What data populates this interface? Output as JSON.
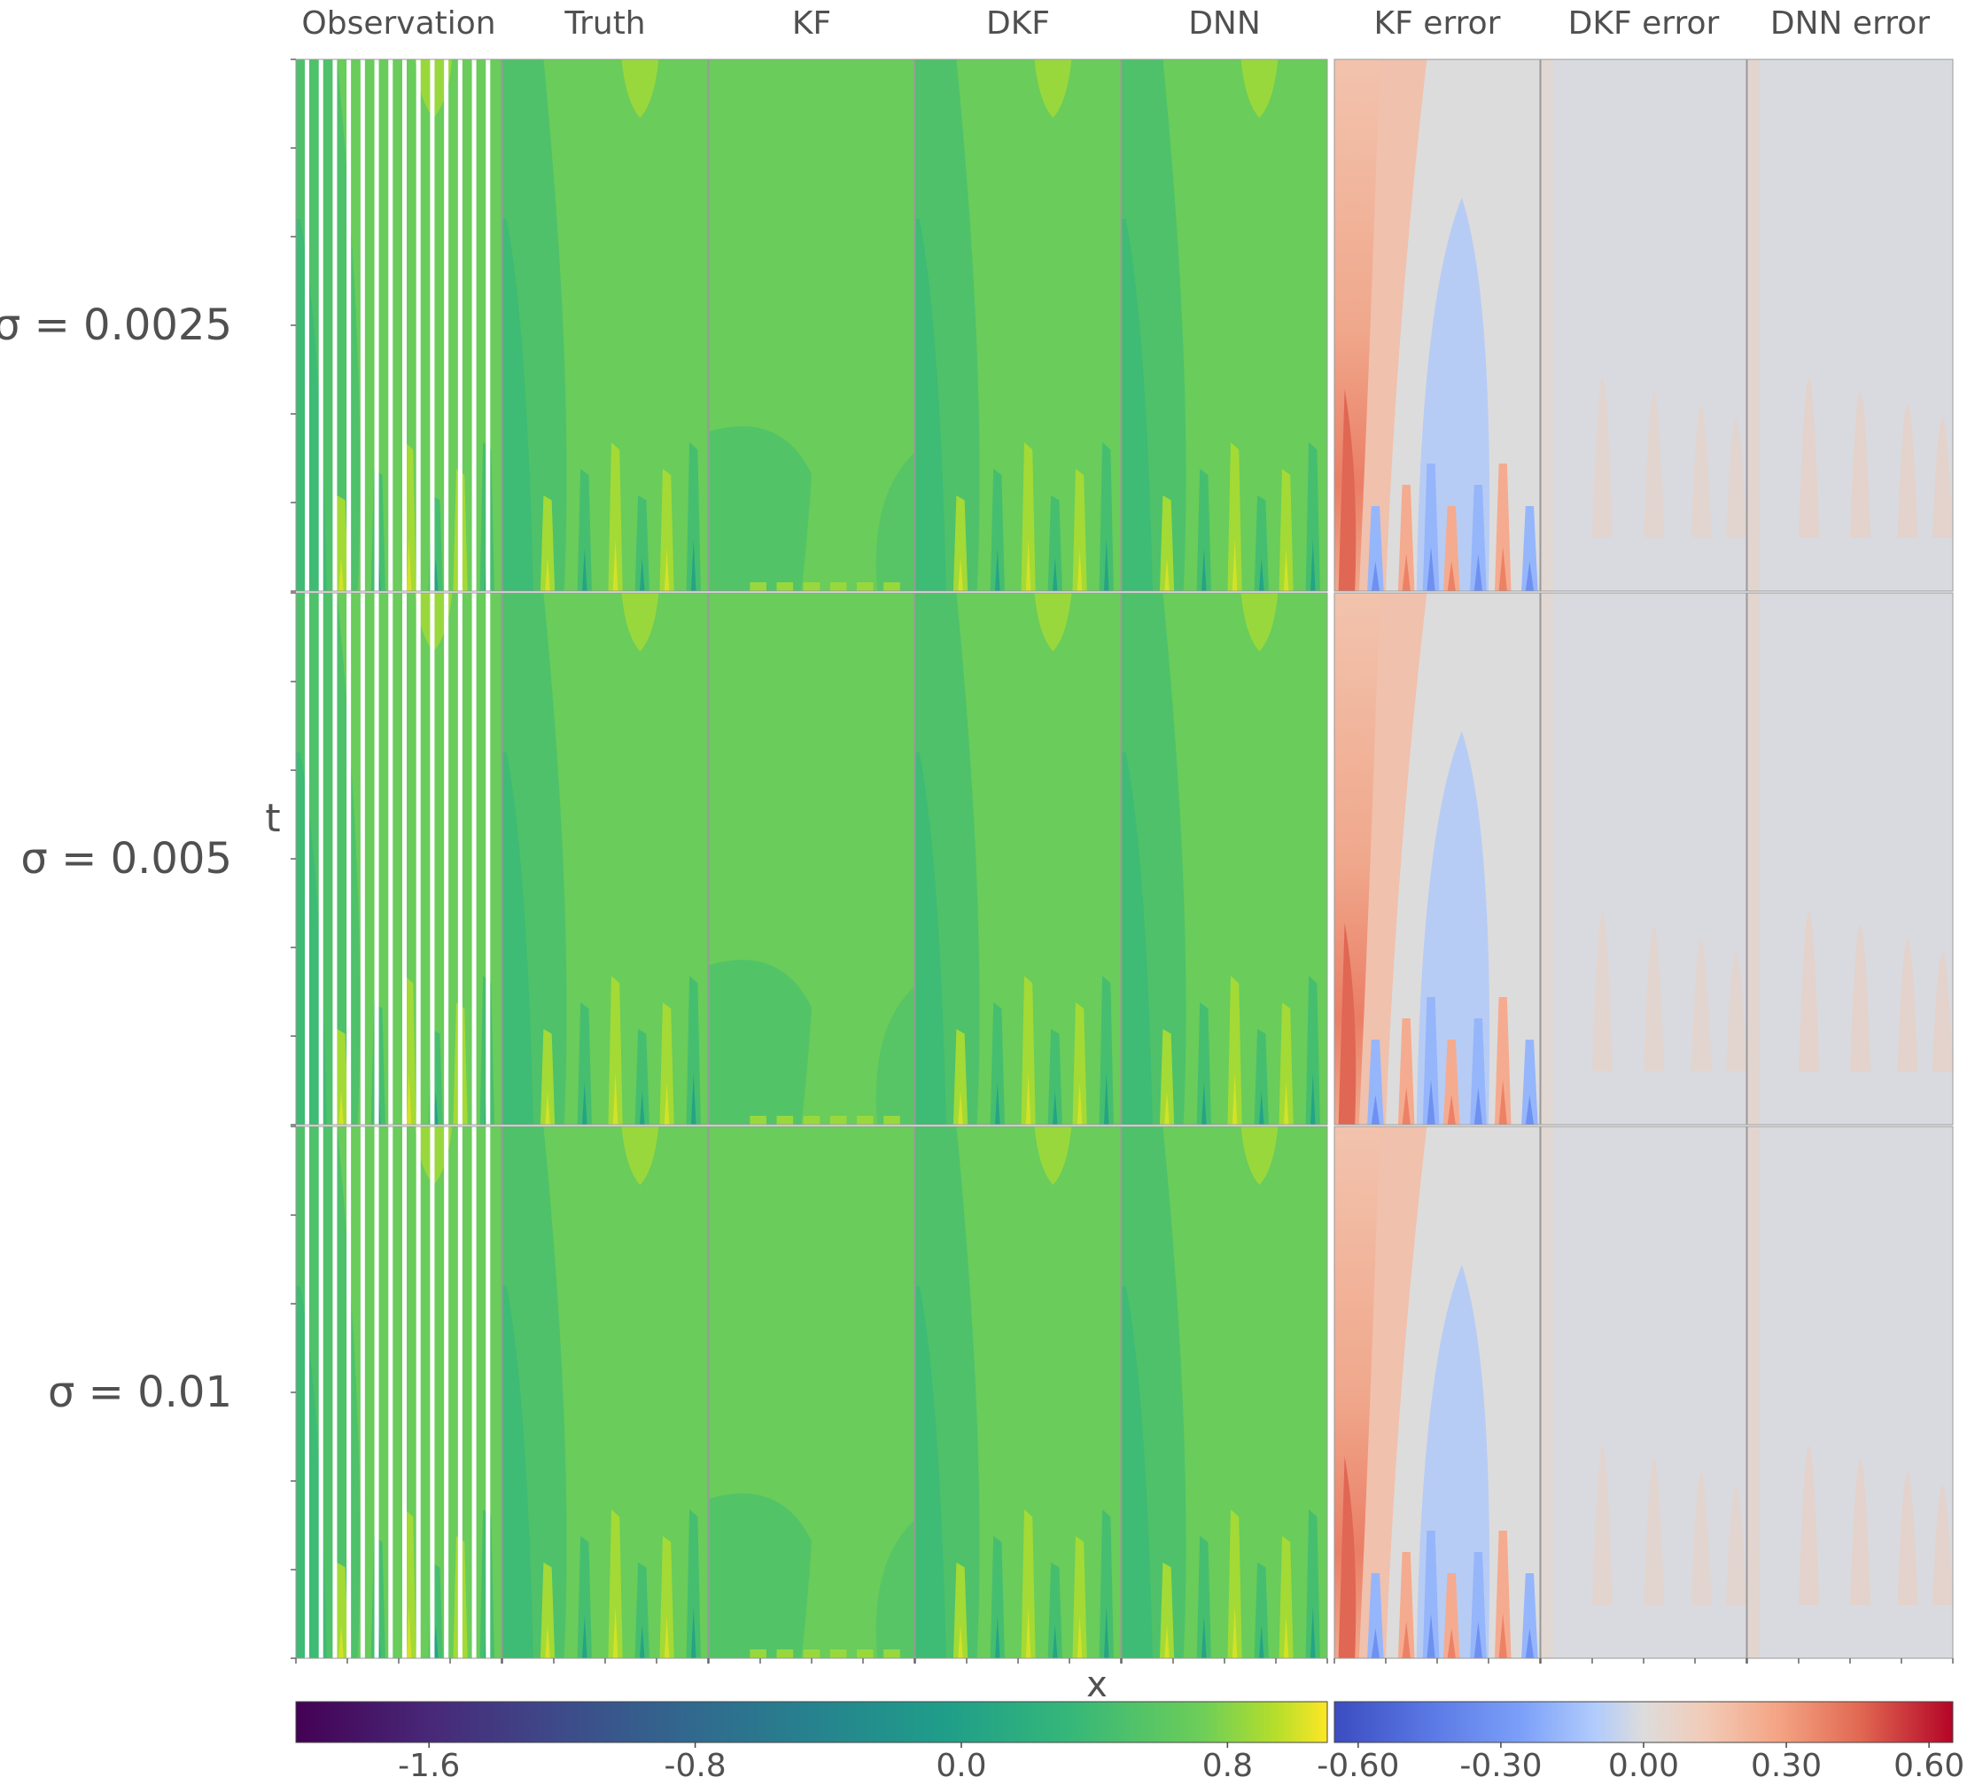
{
  "chart_data": {
    "type": "heatmap",
    "title": "",
    "column_titles": [
      "Observation",
      "Truth",
      "KF",
      "DKF",
      "DNN",
      "KF error",
      "DKF error",
      "DNN error"
    ],
    "row_labels": [
      "σ = 0.0025",
      "σ = 0.005",
      "σ = 0.01"
    ],
    "xlabel": "x",
    "ylabel": "t",
    "grid": false,
    "colorbars": [
      {
        "name": "state",
        "colormap": "viridis",
        "range": [
          -2.0,
          1.1
        ],
        "ticks": [
          -1.6,
          -0.8,
          0.0,
          0.8
        ],
        "tick_labels": [
          "-1.6",
          "-0.8",
          "0.0",
          "0.8"
        ],
        "applies_to": [
          "Observation",
          "Truth",
          "KF",
          "DKF",
          "DNN"
        ]
      },
      {
        "name": "error",
        "colormap": "coolwarm",
        "range": [
          -0.65,
          0.65
        ],
        "ticks": [
          -0.6,
          -0.3,
          0.0,
          0.3,
          0.6
        ],
        "tick_labels": [
          "-0.60",
          "-0.30",
          "0.00",
          "0.30",
          "0.60"
        ],
        "applies_to": [
          "KF error",
          "DKF error",
          "DNN error"
        ]
      }
    ],
    "observation_stripe_count": 14,
    "field_levels": {
      "background": 0.38,
      "truth_left_band": 0.12,
      "peak_top": 0.62,
      "bottom_spike_max": 0.9,
      "kf_bottom_blob": 0.15,
      "kf_error_left_max": 0.42,
      "kf_error_blue_max": -0.55,
      "dkf_error_level": 0.03,
      "dnn_error_level": 0.04
    }
  }
}
